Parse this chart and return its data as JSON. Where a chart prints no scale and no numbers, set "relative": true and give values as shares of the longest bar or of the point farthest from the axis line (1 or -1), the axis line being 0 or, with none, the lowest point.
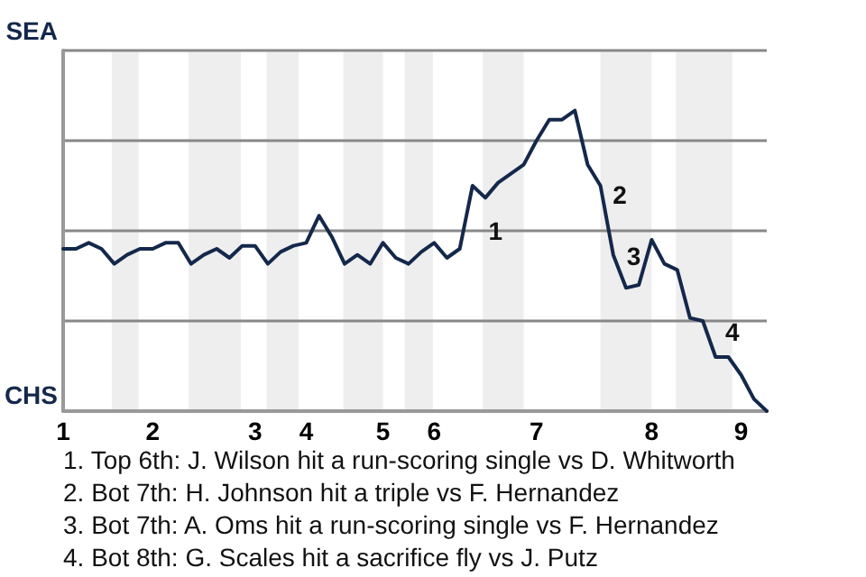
{
  "chart_data": {
    "type": "line",
    "categories": [
      "1",
      null,
      null,
      null,
      null,
      null,
      null,
      "2",
      null,
      null,
      null,
      null,
      null,
      null,
      null,
      "3",
      null,
      null,
      null,
      "4",
      null,
      null,
      null,
      null,
      null,
      "5",
      null,
      null,
      null,
      "6",
      null,
      null,
      null,
      null,
      null,
      null,
      null,
      "7",
      null,
      null,
      null,
      null,
      null,
      null,
      null,
      null,
      "8",
      null,
      null,
      null,
      null,
      null,
      null,
      "9",
      null,
      null
    ],
    "relative": true,
    "series": [
      {
        "color": "#14284b",
        "values": [
          0.54,
          0.54,
          0.56,
          0.54,
          0.49,
          0.52,
          0.54,
          0.54,
          0.56,
          0.56,
          0.49,
          0.52,
          0.54,
          0.51,
          0.55,
          0.55,
          0.49,
          0.53,
          0.55,
          0.56,
          0.65,
          0.58,
          0.49,
          0.52,
          0.49,
          0.56,
          0.51,
          0.49,
          0.53,
          0.56,
          0.51,
          0.54,
          0.75,
          0.71,
          0.76,
          0.79,
          0.82,
          0.9,
          0.97,
          0.97,
          1,
          0.82,
          0.75,
          0.52,
          0.41,
          0.42,
          0.57,
          0.49,
          0.47,
          0.31,
          0.3,
          0.18,
          0.18,
          0.12,
          0.04,
          0
        ]
      }
    ],
    "grid": "y",
    "marker": "none",
    "annotations": [
      "SEA",
      "CHS",
      "1",
      "2",
      "3",
      "4",
      "1. Top 6th: J. Wilson hit a run-scoring single vs D. Whitworth",
      "2. Bot 7th: H. Johnson hit a triple vs F. Hernandez",
      "3. Bot 7th: A. Oms hit a run-scoring single vs F. Hernandez",
      "4. Bot 8th: G. Scales hit a sacrifice fly vs J. Putz"
    ]
  }
}
